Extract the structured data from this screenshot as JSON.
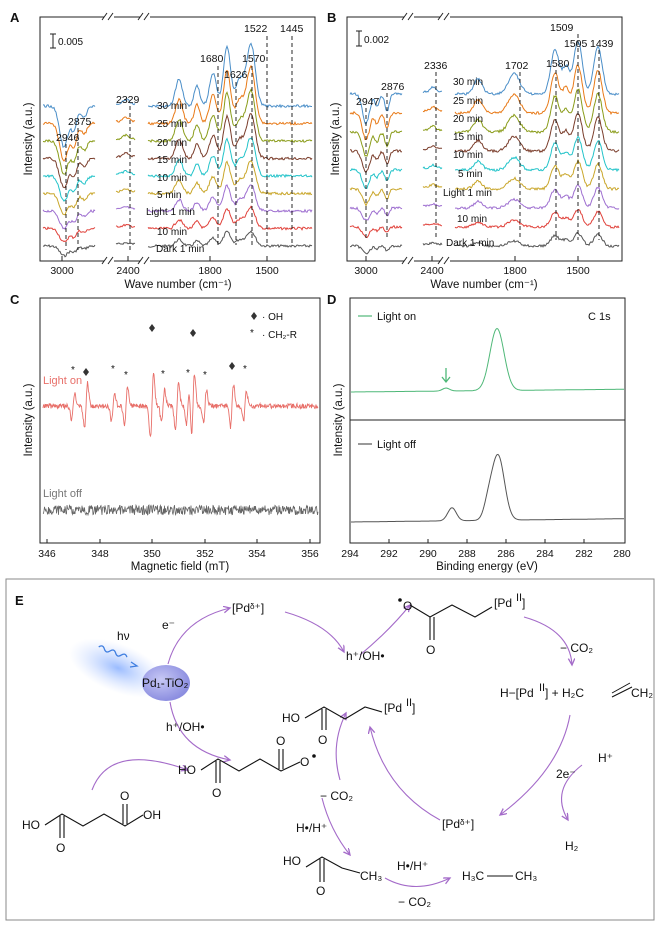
{
  "panels": {
    "a": {
      "letter": "A",
      "ylabel": "Intensity (a.u.)",
      "xlabel": "Wave number (cm⁻¹)",
      "scale": "0.005",
      "ticks": [
        "3000",
        "2400",
        "1800",
        "1500"
      ],
      "series": [
        {
          "name": "Dark 1 min",
          "color": "#555555"
        },
        {
          "name": "10 min",
          "color": "#e0413a"
        },
        {
          "name": "Light 1 min",
          "color": "#9e6fd0"
        },
        {
          "name": "5 min",
          "color": "#c9a62a"
        },
        {
          "name": "10 min",
          "color": "#22c3c9"
        },
        {
          "name": "15 min",
          "color": "#7a3d2b"
        },
        {
          "name": "20 min",
          "color": "#8a9c1a"
        },
        {
          "name": "25 min",
          "color": "#e87a18"
        },
        {
          "name": "30 min",
          "color": "#4a8ec8"
        }
      ],
      "peaks": [
        "2946",
        "2875",
        "2329",
        "1680",
        "1626",
        "1570",
        "1522",
        "1445"
      ]
    },
    "b": {
      "letter": "B",
      "ylabel": "Intensity (a.u.)",
      "xlabel": "Wave number (cm⁻¹)",
      "scale": "0.002",
      "ticks": [
        "3000",
        "2400",
        "1800",
        "1500"
      ],
      "series": [
        {
          "name": "Dark 1 min",
          "color": "#555555"
        },
        {
          "name": "10 min",
          "color": "#e0413a"
        },
        {
          "name": "Light 1 min",
          "color": "#9e6fd0"
        },
        {
          "name": "5 min",
          "color": "#c9a62a"
        },
        {
          "name": "10 min",
          "color": "#22c3c9"
        },
        {
          "name": "15 min",
          "color": "#7a3d2b"
        },
        {
          "name": "20 min",
          "color": "#8a9c1a"
        },
        {
          "name": "25 min",
          "color": "#e87a18"
        },
        {
          "name": "30 min",
          "color": "#4a8ec8"
        }
      ],
      "peaks": [
        "2947",
        "2876",
        "2336",
        "1702",
        "1580",
        "1509",
        "1505",
        "1439"
      ]
    },
    "c": {
      "letter": "C",
      "ylabel": "Intensity (a.u.)",
      "xlabel": "Magnetic field (mT)",
      "ticks": [
        "346",
        "348",
        "350",
        "352",
        "354",
        "356"
      ],
      "legend": [
        "· OH",
        "· CH₂-R"
      ],
      "light_on": "Light on",
      "light_off": "Light off",
      "color_on": "#e8706a",
      "color_off": "#666666"
    },
    "d": {
      "letter": "D",
      "ylabel": "Intensity (a.u.)",
      "xlabel": "Binding energy (eV)",
      "ticks": [
        "294",
        "292",
        "290",
        "288",
        "286",
        "284",
        "282",
        "280"
      ],
      "title": "C 1s",
      "light_on": "Light on",
      "light_off": "Light off",
      "color_on": "#4fb878",
      "color_off": "#555555"
    },
    "e": {
      "letter": "E",
      "hv": "hν",
      "catalyst": "Pd₁-TiO₂",
      "e_minus": "e⁻",
      "pd_delta": "[Pdᵟ⁺]",
      "h_oh_1": "h⁺/OH•",
      "h_oh_2": "h⁺/OH•",
      "pd_II": "[Pd",
      "pd_II_sup": "II",
      "minus_co2": "− CO₂",
      "hpd_eq": "H−[Pd",
      "hpd_eq_rest": "] + H₂C",
      "ch2": "CH₂",
      "two_e": "2e⁻",
      "h_plus": "H⁺",
      "h2": "H₂",
      "pd_delta_2": "[Pdᵟ⁺]",
      "ho": "HO",
      "oh": "OH",
      "o": "O",
      "h_rad": "H•/H⁺",
      "h_rad_2": "H•/H⁺",
      "ch3": "CH₃",
      "ethane": "H₃C",
      "ethane_r": "CH₃"
    }
  }
}
